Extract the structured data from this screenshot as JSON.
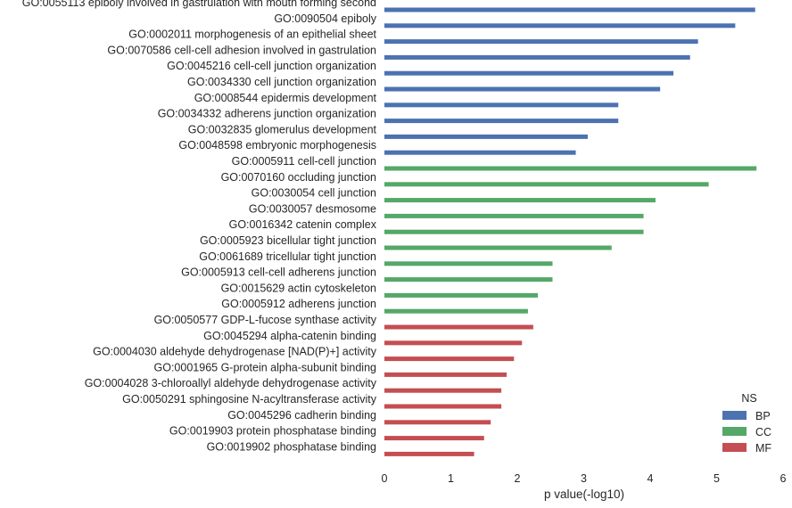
{
  "chart_data": {
    "type": "bar",
    "orientation": "horizontal",
    "xlabel": "p value(-log10)",
    "xlim": [
      0,
      6
    ],
    "xticks": [
      "0",
      "1",
      "2",
      "3",
      "4",
      "5",
      "6"
    ],
    "grid": false,
    "legend": {
      "title": "NS",
      "placement": "lower-right",
      "items": [
        {
          "name": "BP",
          "color": "#4c72b0"
        },
        {
          "name": "CC",
          "color": "#55a868"
        },
        {
          "name": "MF",
          "color": "#c44e52"
        }
      ]
    },
    "categories": [
      "GO:0055113 epiboly involved in gastrulation with mouth forming second",
      "GO:0090504 epiboly",
      "GO:0002011 morphogenesis of an epithelial sheet",
      "GO:0070586 cell-cell adhesion involved in gastrulation",
      "GO:0045216 cell-cell junction organization",
      "GO:0034330 cell junction organization",
      "GO:0008544 epidermis development",
      "GO:0034332 adherens junction organization",
      "GO:0032835 glomerulus development",
      "GO:0048598 embryonic morphogenesis",
      "GO:0005911 cell-cell junction",
      "GO:0070160 occluding junction",
      "GO:0030054 cell junction",
      "GO:0030057 desmosome",
      "GO:0016342 catenin complex",
      "GO:0005923 bicellular tight junction",
      "GO:0061689 tricellular tight junction",
      "GO:0005913 cell-cell adherens junction",
      "GO:0015629 actin cytoskeleton",
      "GO:0005912 adherens junction",
      "GO:0050577 GDP-L-fucose synthase activity",
      "GO:0045294 alpha-catenin binding",
      "GO:0004030 aldehyde dehydrogenase [NAD(P)+] activity",
      "GO:0001965 G-protein alpha-subunit binding",
      "GO:0004028 3-chloroallyl aldehyde dehydrogenase activity",
      "GO:0050291 sphingosine N-acyltransferase activity",
      "GO:0045296 cadherin binding",
      "GO:0019903 protein phosphatase binding",
      "GO:0019902 phosphatase binding"
    ],
    "series": [
      {
        "name": "BP",
        "values": [
          5.58,
          5.28,
          4.72,
          4.6,
          4.35,
          4.15,
          3.52,
          3.52,
          3.06,
          2.88,
          null,
          null,
          null,
          null,
          null,
          null,
          null,
          null,
          null,
          null,
          null,
          null,
          null,
          null,
          null,
          null,
          null,
          null,
          null
        ]
      },
      {
        "name": "CC",
        "values": [
          null,
          null,
          null,
          null,
          null,
          null,
          null,
          null,
          null,
          null,
          5.6,
          4.88,
          4.08,
          3.9,
          3.9,
          3.42,
          2.53,
          2.53,
          2.31,
          2.16,
          null,
          null,
          null,
          null,
          null,
          null,
          null,
          null,
          null
        ]
      },
      {
        "name": "MF",
        "values": [
          null,
          null,
          null,
          null,
          null,
          null,
          null,
          null,
          null,
          null,
          null,
          null,
          null,
          null,
          null,
          null,
          null,
          null,
          null,
          null,
          2.24,
          2.07,
          1.95,
          1.84,
          1.76,
          1.76,
          1.6,
          1.5,
          1.35
        ]
      }
    ]
  }
}
